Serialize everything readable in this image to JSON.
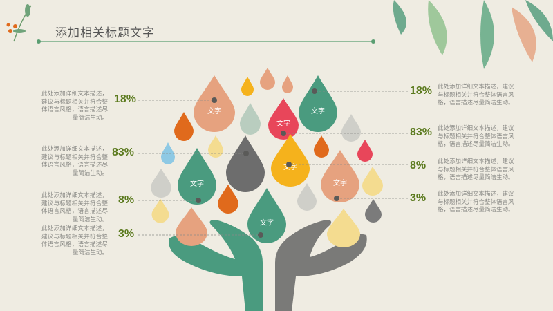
{
  "title": "添加相关标题文字",
  "leaf_label": "文字",
  "left_items": [
    {
      "percent": "18%",
      "text": "此处添加详细文本描述，建议与标题相关并符合整体语言风格，语言描述尽量简洁生动。"
    },
    {
      "percent": "83%",
      "text": "此处添加详细文本描述，建议与标题相关并符合整体语言风格，语言描述尽量简洁生动。"
    },
    {
      "percent": "8%",
      "text": "此处添加详细文本描述，建议与标题相关并符合整体语言风格，语言描述尽量简洁生动。"
    },
    {
      "percent": "3%",
      "text": "此处添加详细文本描述，建议与标题相关并符合整体语言风格，语言描述尽量简洁生动。"
    }
  ],
  "right_items": [
    {
      "percent": "18%",
      "text": "此处添加详细文本描述，建议与标题相关并符合整体语言风格，语言描述尽量简洁生动。"
    },
    {
      "percent": "83%",
      "text": "此处添加详细文本描述，建议与标题相关并符合整体语言风格，语言描述尽量简洁生动。"
    },
    {
      "percent": "8%",
      "text": "此处添加详细文本描述，建议与标题相关并符合整体语言风格，语言描述尽量简洁生动。"
    },
    {
      "percent": "3%",
      "text": "此处添加详细文本描述，建议与标题相关并符合整体语言风格，语言描述尽量简洁生动。"
    }
  ],
  "colors": {
    "accent": "#5a9e72",
    "percent": "#5b7a1e",
    "green": "#4a9b7f",
    "salmon": "#e6a27f",
    "red": "#e8465a",
    "yellow": "#f5b21c",
    "orange": "#e06a1c",
    "gray": "#6d6d6d"
  }
}
